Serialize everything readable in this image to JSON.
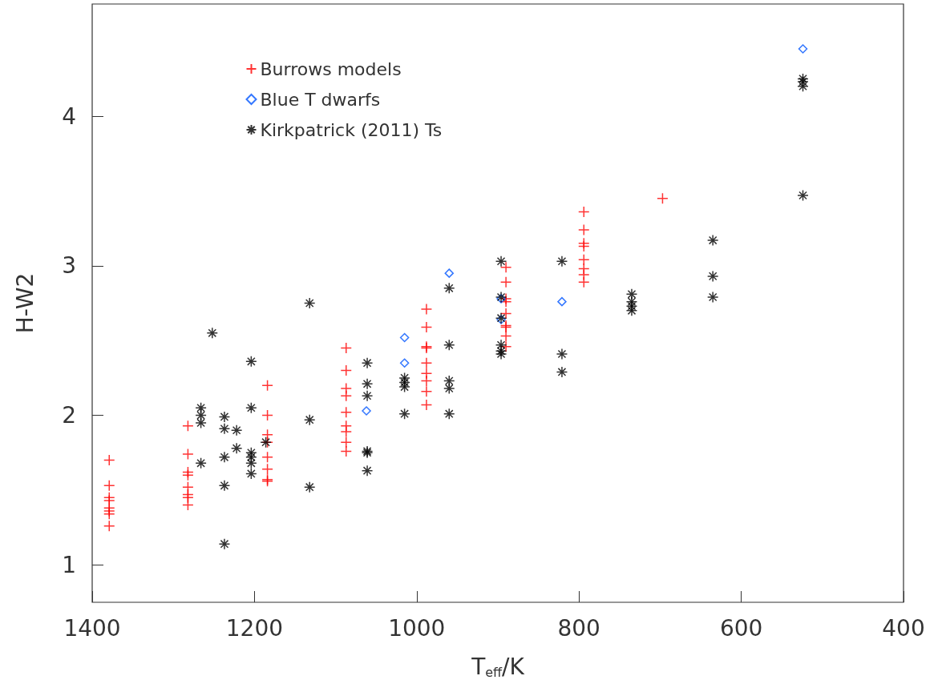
{
  "chart_data": {
    "type": "scatter",
    "xlabel": "T$_{eff}$/K",
    "ylabel": "H-W2",
    "xlim": [
      1400,
      400
    ],
    "xticks": [
      1400,
      1200,
      1000,
      800,
      600,
      400
    ],
    "ylim": [
      0.75,
      4.75
    ],
    "yticks": [
      1,
      2,
      3,
      4
    ],
    "grid": false,
    "legend": "top left",
    "series": [
      {
        "name": "Burrows models",
        "color": "#ff0000",
        "marker": "cross",
        "x": [
          1379,
          1379,
          1379,
          1379,
          1379,
          1379,
          1379,
          1379,
          1282,
          1282,
          1282,
          1282,
          1282,
          1282,
          1282,
          1282,
          1184,
          1184,
          1184,
          1184,
          1184,
          1184,
          1184,
          1184,
          1087,
          1087,
          1087,
          1087,
          1087,
          1087,
          1087,
          1087,
          1087,
          988,
          988,
          988,
          988,
          988,
          988,
          988,
          988,
          988,
          890,
          890,
          890,
          890,
          890,
          890,
          890,
          890,
          890,
          794,
          794,
          794,
          794,
          794,
          794,
          794,
          794,
          697
        ],
        "values": [
          1.7,
          1.53,
          1.45,
          1.43,
          1.38,
          1.36,
          1.34,
          1.26,
          1.93,
          1.74,
          1.62,
          1.6,
          1.52,
          1.47,
          1.45,
          1.4,
          2.2,
          2.0,
          1.87,
          1.82,
          1.72,
          1.64,
          1.57,
          1.56,
          2.45,
          2.3,
          2.18,
          2.13,
          2.02,
          1.93,
          1.89,
          1.82,
          1.76,
          2.71,
          2.59,
          2.46,
          2.45,
          2.35,
          2.28,
          2.23,
          2.16,
          2.07,
          2.99,
          2.89,
          2.78,
          2.76,
          2.68,
          2.6,
          2.59,
          2.53,
          2.46,
          3.36,
          3.24,
          3.15,
          3.13,
          3.04,
          2.98,
          2.94,
          2.89,
          3.45
        ]
      },
      {
        "name": "Blue T dwarfs",
        "color": "#0055ff",
        "marker": "diamond",
        "x": [
          1062,
          1015,
          1015,
          960,
          896,
          896,
          821,
          524
        ],
        "values": [
          2.03,
          2.52,
          2.35,
          2.95,
          2.78,
          2.64,
          2.76,
          4.45
        ]
      },
      {
        "name": "Kirkpatrick (2011) Ts",
        "color": "#000000",
        "marker": "cross",
        "x": [
          1266,
          1266,
          1266,
          1266,
          1252,
          1237,
          1237,
          1237,
          1237,
          1237,
          1222,
          1222,
          1204,
          1204,
          1204,
          1204,
          1204,
          1204,
          1186,
          1132,
          1132,
          1132,
          1061,
          1061,
          1061,
          1061,
          1061,
          1061,
          1015,
          1015,
          1015,
          1015,
          960,
          960,
          960,
          960,
          960,
          896,
          896,
          896,
          896,
          896,
          896,
          821,
          821,
          821,
          735,
          735,
          735,
          735,
          635,
          635,
          635,
          524,
          524,
          524,
          524
        ],
        "values": [
          2.05,
          2.0,
          1.95,
          1.68,
          2.55,
          1.99,
          1.91,
          1.72,
          1.53,
          1.14,
          1.9,
          1.78,
          2.36,
          2.05,
          1.75,
          1.72,
          1.68,
          1.61,
          1.82,
          2.75,
          1.97,
          1.52,
          2.35,
          2.21,
          2.13,
          1.76,
          1.75,
          1.63,
          2.25,
          2.22,
          2.19,
          2.01,
          2.85,
          2.47,
          2.23,
          2.18,
          2.01,
          3.03,
          2.79,
          2.65,
          2.47,
          2.43,
          2.41,
          3.03,
          2.41,
          2.29,
          2.81,
          2.76,
          2.73,
          2.7,
          3.17,
          2.93,
          2.79,
          4.25,
          4.23,
          4.2,
          3.47
        ]
      }
    ]
  }
}
